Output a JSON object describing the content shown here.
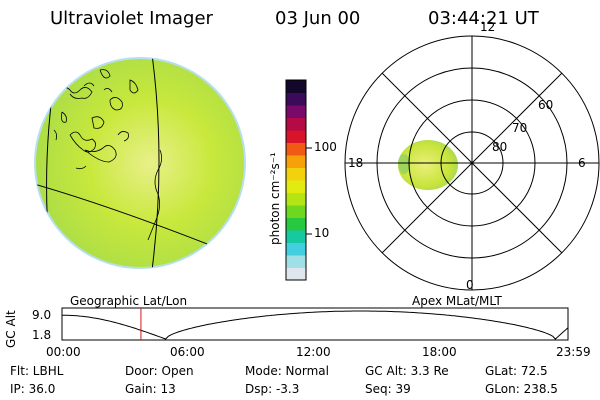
{
  "header": {
    "instrument": "Ultraviolet Imager",
    "date": "03 Jun 00",
    "time": "03:44:21 UT"
  },
  "colorbar": {
    "label": "photon cm⁻²s⁻¹",
    "ticks": [
      "100",
      "10"
    ],
    "colors": [
      "#dfe6ee",
      "#9fe0e6",
      "#43cfe0",
      "#16c9a0",
      "#28c840",
      "#6ed81e",
      "#b4e414",
      "#e2ea10",
      "#f2d20e",
      "#f6a00a",
      "#f05a14",
      "#d8142a",
      "#b40a46",
      "#7a0a6a",
      "#3c0a5a",
      "#14082a"
    ]
  },
  "earth_panel": {
    "caption": "Geographic Lat/Lon",
    "disk_color": "#c8e63c"
  },
  "polar_panel": {
    "caption": "Apex MLat/MLT",
    "mlt_labels": {
      "top": "12",
      "left": "18",
      "right": "6",
      "bottom": "0"
    },
    "lat_labels": [
      "60",
      "70",
      "80"
    ]
  },
  "timeline": {
    "axis_label": "GC Alt",
    "y_ticks": [
      "9.0",
      "1.8"
    ],
    "x_ticks": [
      "00:00",
      "06:00",
      "12:00",
      "18:00",
      "23:59"
    ],
    "current_fraction": 0.156
  },
  "params": {
    "filter": "Flt: LBHL",
    "ip": "IP: 36.0",
    "door": "Door: Open",
    "gain": "Gain: 13",
    "mode": "Mode: Normal",
    "dsp": "Dsp:   -3.3",
    "gc_alt": "GC Alt: 3.3 Re",
    "seq": "Seq: 39",
    "glat": "GLat:  72.5",
    "glon": "GLon: 238.5"
  }
}
